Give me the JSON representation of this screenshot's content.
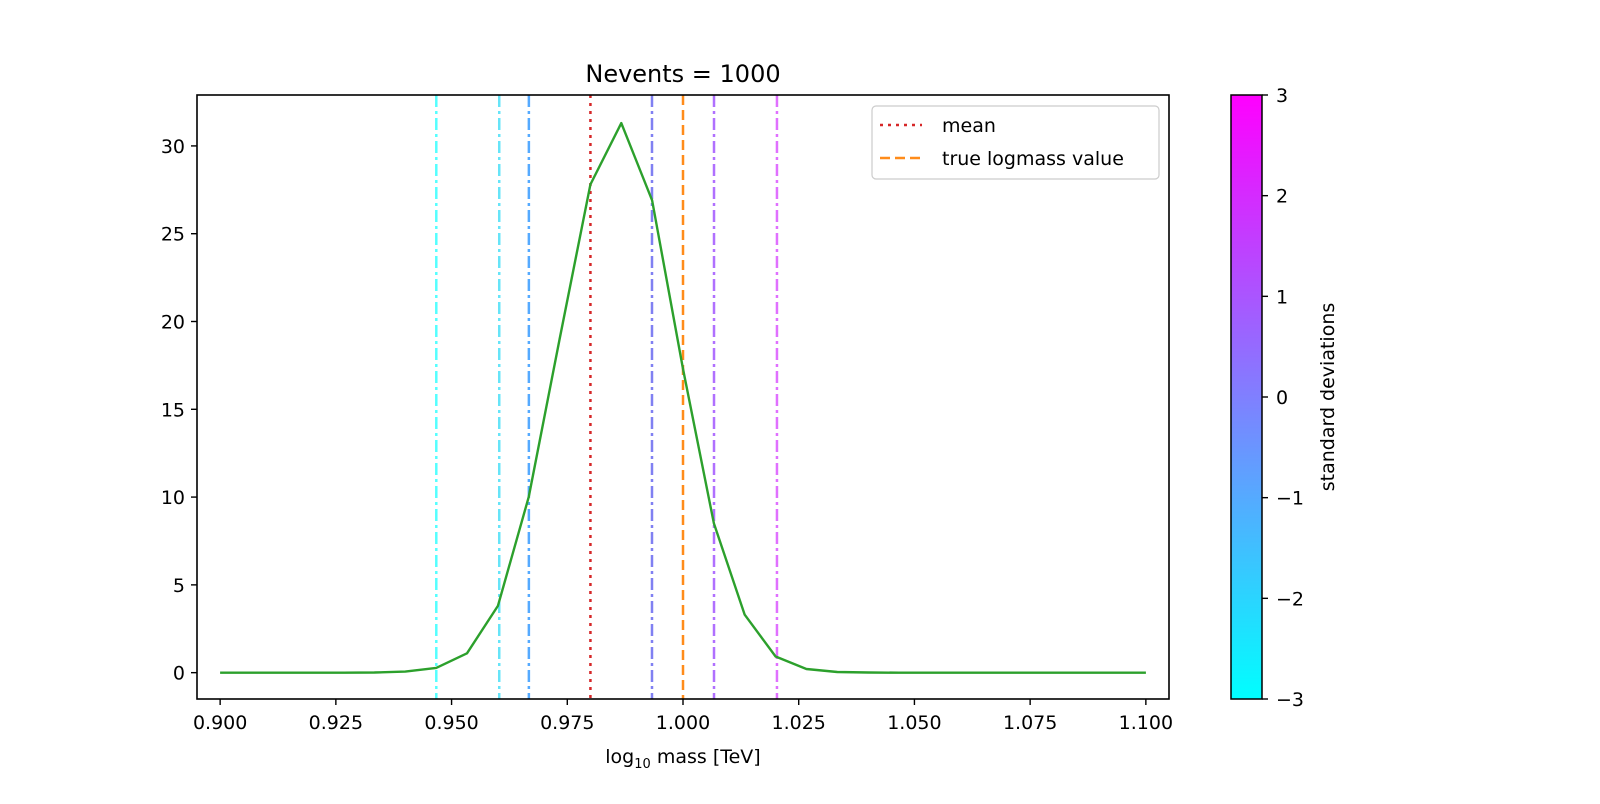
{
  "chart_data": {
    "type": "line",
    "title": "Nevents = 1000",
    "xlabel": {
      "prefix": "log",
      "sub": "10",
      "suffix": " mass [TeV]"
    },
    "ylabel": "",
    "xlim": [
      0.895,
      1.105
    ],
    "ylim": [
      -1.5,
      32.9
    ],
    "xticks": [
      "0.900",
      "0.925",
      "0.950",
      "0.975",
      "1.000",
      "1.025",
      "1.050",
      "1.075",
      "1.100"
    ],
    "yticks": [
      "0",
      "5",
      "10",
      "15",
      "20",
      "25",
      "30"
    ],
    "grid": false,
    "legend_position": "top-right",
    "series": [
      {
        "color": "#2ca02c",
        "x": [
          0.9,
          0.90667,
          0.91333,
          0.92,
          0.92667,
          0.93333,
          0.94,
          0.94667,
          0.95333,
          0.96,
          0.96667,
          0.97333,
          0.98,
          0.98667,
          0.99333,
          1.0,
          1.00667,
          1.01333,
          1.02,
          1.02667,
          1.03333,
          1.04,
          1.04667,
          1.05333,
          1.06,
          1.06667,
          1.07333,
          1.08,
          1.08667,
          1.09333,
          1.1
        ],
        "y": [
          0,
          0,
          0,
          0,
          0,
          0.01,
          0.06,
          0.27,
          1.1,
          3.8,
          10.0,
          19.0,
          27.8,
          31.3,
          26.9,
          17.3,
          8.5,
          3.3,
          0.92,
          0.21,
          0.04,
          0.01,
          0,
          0,
          0,
          0,
          0,
          0,
          0,
          0,
          0
        ]
      }
    ],
    "vlines": [
      {
        "label": "mean",
        "x": 0.98,
        "color": "#d62728",
        "style": "dotted"
      },
      {
        "label": "true logmass value",
        "x": 1.0,
        "color": "#ff8c1a",
        "style": "dashed"
      },
      {
        "label": "",
        "x": 0.9467,
        "color": "#55ffff",
        "style": "dashdot",
        "sigma": -2.5
      },
      {
        "label": "",
        "x": 0.9603,
        "color": "#66e4f8",
        "style": "dashdot",
        "sigma": -2.0
      },
      {
        "label": "",
        "x": 0.9667,
        "color": "#55aaff",
        "style": "dashdot",
        "sigma": -1.5
      },
      {
        "label": "",
        "x": 0.9933,
        "color": "#8080f2",
        "style": "dashdot",
        "sigma": 0.5
      },
      {
        "label": "",
        "x": 1.0067,
        "color": "#b070ff",
        "style": "dashdot",
        "sigma": 1.0
      },
      {
        "label": "",
        "x": 1.0203,
        "color": "#e070ff",
        "style": "dashdot",
        "sigma": 2.0
      }
    ],
    "colorbar": {
      "label": "standard deviations",
      "range": [
        -3,
        3
      ],
      "ticks": [
        "3",
        "2",
        "1",
        "0",
        "−1",
        "−2",
        "−3"
      ],
      "color_low": "#00ffff",
      "color_high": "#ff00ff"
    }
  }
}
